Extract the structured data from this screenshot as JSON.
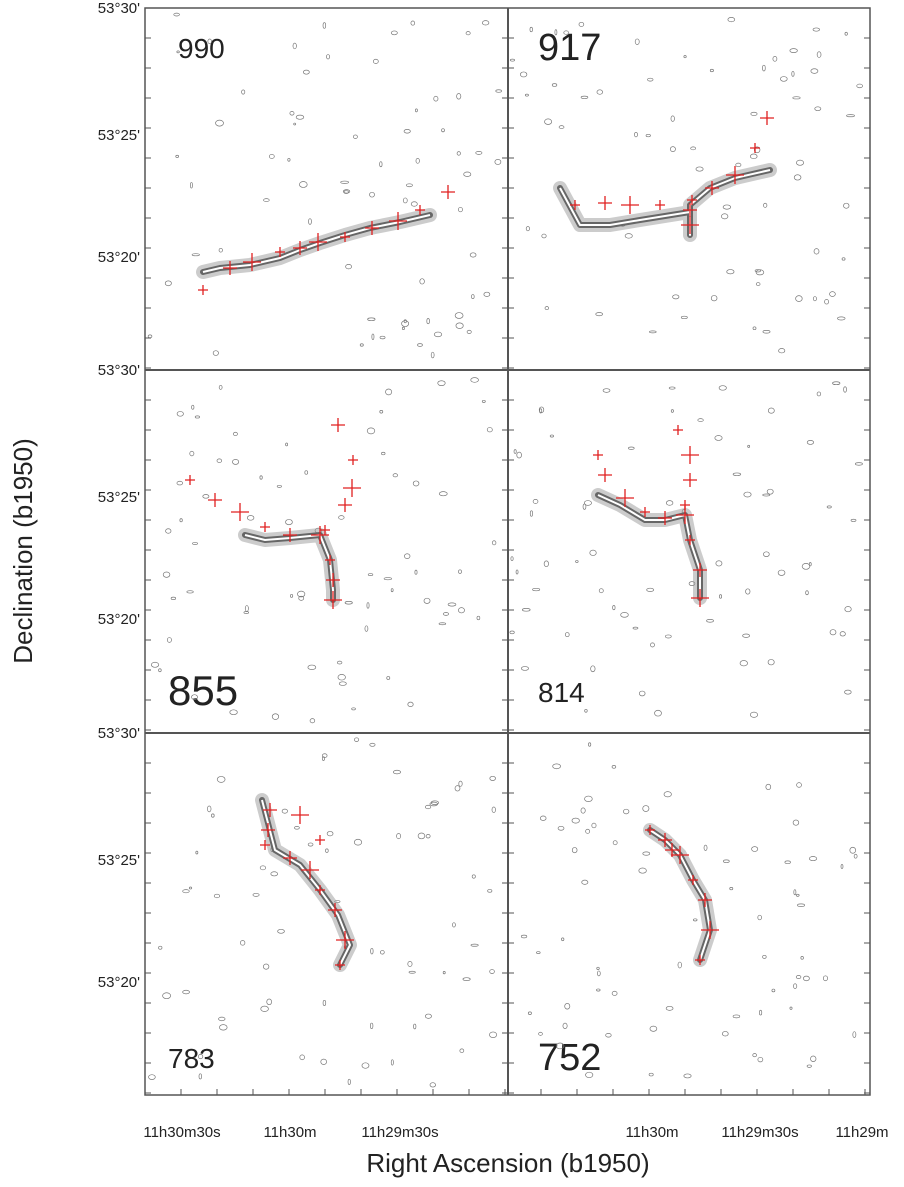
{
  "figure": {
    "panels": [
      {
        "label": "990"
      },
      {
        "label": "917"
      },
      {
        "label": "855"
      },
      {
        "label": "814"
      },
      {
        "label": "783"
      },
      {
        "label": "752"
      }
    ],
    "y_ticks": [
      "53°30'",
      "53°25'",
      "53°20'"
    ],
    "x_ticks_left": [
      "11h30m30s",
      "11h30m",
      "11h29m30s"
    ],
    "x_ticks_right": [
      "11h30m",
      "11h29m30s",
      "11h29m"
    ],
    "x_label": "Right Ascension (b1950)",
    "y_label": "Declination (b1950)"
  }
}
